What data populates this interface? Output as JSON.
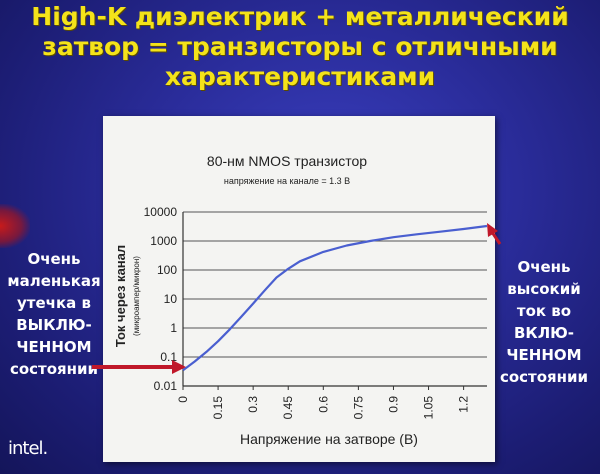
{
  "slide": {
    "title_lines": [
      "High-K диэлектрик + металлический",
      "затвор = транзисторы с отличными",
      "характеристиками"
    ],
    "left_note_lines": [
      "Очень",
      "маленькая",
      "утечка в",
      "ВЫКЛЮ-",
      "ЧЕННОМ",
      "состоянии"
    ],
    "right_note_lines": [
      "Очень",
      "высокий",
      "ток во",
      "ВКЛЮ-",
      "ЧЕННОМ",
      "состоянии"
    ],
    "logo": "intel."
  },
  "colors": {
    "title": "#f4e31a",
    "curve": "#4a5fd0",
    "arrow": "#c0182a",
    "background": "#2a2c9a"
  },
  "chart_data": {
    "type": "line",
    "title": "80-нм NMOS транзистор",
    "subtitle": "напряжение на канале = 1.3 В",
    "xlabel": "Напряжение на затворе (В)",
    "ylabel": "Ток через канал",
    "ylabel_unit": "(микроампер/микрон)",
    "x_ticks": [
      "0",
      "0.15",
      "0.3",
      "0.45",
      "0.6",
      "0.75",
      "0.9",
      "1.05",
      "1.2"
    ],
    "y_ticks": [
      "0.01",
      "0.1",
      "1",
      "10",
      "100",
      "1000",
      "10000"
    ],
    "xlim": [
      0,
      1.3
    ],
    "ylim": [
      0.01,
      10000
    ],
    "y_scale": "log",
    "grid": "horizontal",
    "series": [
      {
        "x": [
          0.0,
          0.05,
          0.1,
          0.15,
          0.2,
          0.25,
          0.3,
          0.35,
          0.4,
          0.45,
          0.5,
          0.6,
          0.7,
          0.8,
          0.9,
          1.0,
          1.1,
          1.2,
          1.3
        ],
        "y": [
          0.035,
          0.07,
          0.15,
          0.35,
          0.9,
          2.5,
          7,
          20,
          55,
          110,
          200,
          420,
          700,
          1000,
          1350,
          1700,
          2100,
          2600,
          3300
        ]
      }
    ]
  }
}
